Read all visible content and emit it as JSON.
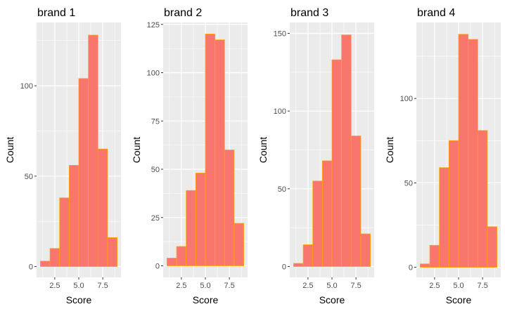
{
  "chart_data": [
    {
      "type": "bar",
      "title": "brand 1",
      "xlabel": "Score",
      "ylabel": "Count",
      "bin_edges": [
        1,
        2,
        3,
        4,
        5,
        6,
        7,
        8,
        9
      ],
      "values": [
        3,
        10,
        38,
        56,
        104,
        128,
        65,
        16
      ],
      "xlim": [
        0.6,
        9.4
      ],
      "ylim": [
        -6,
        135
      ],
      "xticks": [
        2.5,
        5.0,
        7.5
      ],
      "xtick_labels": [
        "2.5",
        "5.0",
        "7.5"
      ],
      "yticks": [
        0,
        50,
        100
      ],
      "ytick_labels": [
        "0",
        "50",
        "100"
      ]
    },
    {
      "type": "bar",
      "title": "brand 2",
      "xlabel": "Score",
      "ylabel": "Count",
      "bin_edges": [
        1,
        2,
        3,
        4,
        5,
        6,
        7,
        8,
        9
      ],
      "values": [
        4,
        10,
        39,
        48,
        120,
        117,
        60,
        22
      ],
      "xlim": [
        0.6,
        9.4
      ],
      "ylim": [
        -6,
        126
      ],
      "xticks": [
        2.5,
        5.0,
        7.5
      ],
      "xtick_labels": [
        "2.5",
        "5.0",
        "7.5"
      ],
      "yticks": [
        0,
        25,
        50,
        75,
        100,
        125
      ],
      "ytick_labels": [
        "0",
        "25",
        "50",
        "75",
        "100",
        "125"
      ]
    },
    {
      "type": "bar",
      "title": "brand 3",
      "xlabel": "Score",
      "ylabel": "Count",
      "bin_edges": [
        1,
        2,
        3,
        4,
        5,
        6,
        7,
        8,
        9
      ],
      "values": [
        2,
        14,
        55,
        68,
        133,
        149,
        84,
        21
      ],
      "xlim": [
        0.6,
        9.4
      ],
      "ylim": [
        -7,
        157
      ],
      "xticks": [
        2.5,
        5.0,
        7.5
      ],
      "xtick_labels": [
        "2.5",
        "5.0",
        "7.5"
      ],
      "yticks": [
        0,
        50,
        100,
        150
      ],
      "ytick_labels": [
        "0",
        "50",
        "100",
        "150"
      ]
    },
    {
      "type": "bar",
      "title": "brand 4",
      "xlabel": "Score",
      "ylabel": "Count",
      "bin_edges": [
        1,
        2,
        3,
        4,
        5,
        6,
        7,
        8,
        9
      ],
      "values": [
        2,
        13,
        59,
        75,
        138,
        135,
        81,
        24
      ],
      "xlim": [
        0.6,
        9.4
      ],
      "ylim": [
        -6,
        145
      ],
      "xticks": [
        2.5,
        5.0,
        7.5
      ],
      "xtick_labels": [
        "2.5",
        "5.0",
        "7.5"
      ],
      "yticks": [
        0,
        50,
        100
      ],
      "ytick_labels": [
        "0",
        "50",
        "100"
      ]
    }
  ],
  "colors": {
    "panel_background": "#ebebeb",
    "grid": "#ffffff",
    "bar_fill": "#f8766d",
    "bar_outline": "#ffa500",
    "tick_text": "#4d4d4d",
    "tick_mark": "#333333"
  }
}
